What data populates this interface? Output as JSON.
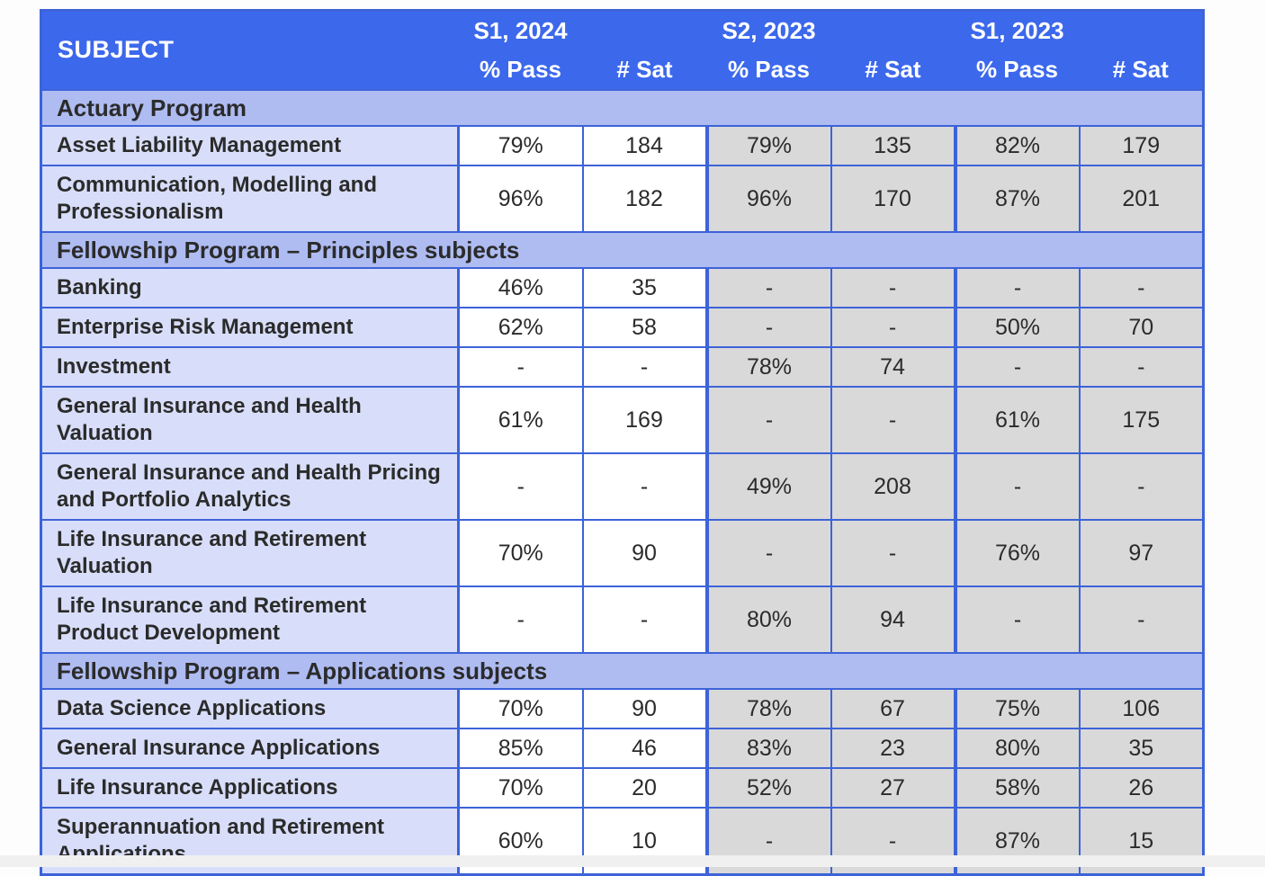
{
  "colors": {
    "header_bg": "#3c68ec",
    "section_bg": "#afbcf2",
    "subject_bg": "#d8def9",
    "current_bg": "#ffffff",
    "past_bg": "#d9d9d9",
    "border": "#3d63d8",
    "header_text": "#ffffff",
    "body_text": "#2b2b2b",
    "page_bg": "#fdfdfd",
    "footer_strip": "#f0f0f0"
  },
  "chart_data": {
    "type": "table",
    "columns": [
      "SUBJECT",
      "S1, 2024 % Pass",
      "S1, 2024 # Sat",
      "S2, 2023 % Pass",
      "S2, 2023 # Sat",
      "S1, 2023 % Pass",
      "S1, 2023 # Sat"
    ],
    "header": {
      "subject_label": "SUBJECT",
      "periods": [
        {
          "label": "S1, 2024",
          "pass_label": "% Pass",
          "sat_label": "# Sat"
        },
        {
          "label": "S2, 2023",
          "pass_label": "% Pass",
          "sat_label": "# Sat"
        },
        {
          "label": "S1, 2023",
          "pass_label": "% Pass",
          "sat_label": "# Sat"
        }
      ]
    },
    "sections": [
      {
        "title": "Actuary Program",
        "rows": [
          {
            "subject": "Asset Liability Management",
            "values": [
              "79%",
              "184",
              "79%",
              "135",
              "82%",
              "179"
            ]
          },
          {
            "subject": "Communication, Modelling and Professionalism",
            "values": [
              "96%",
              "182",
              "96%",
              "170",
              "87%",
              "201"
            ]
          }
        ]
      },
      {
        "title": "Fellowship Program – Principles subjects",
        "rows": [
          {
            "subject": "Banking",
            "values": [
              "46%",
              "35",
              "-",
              "-",
              "-",
              "-"
            ]
          },
          {
            "subject": "Enterprise Risk Management",
            "values": [
              "62%",
              "58",
              "-",
              "-",
              "50%",
              "70"
            ]
          },
          {
            "subject": "Investment",
            "values": [
              "-",
              "-",
              "78%",
              "74",
              "-",
              "-"
            ]
          },
          {
            "subject": "General Insurance and Health Valuation",
            "values": [
              "61%",
              "169",
              "-",
              "-",
              "61%",
              "175"
            ]
          },
          {
            "subject": "General Insurance and Health Pricing and Portfolio Analytics",
            "values": [
              "-",
              "-",
              "49%",
              "208",
              "-",
              "-"
            ]
          },
          {
            "subject": "Life Insurance and Retirement Valuation",
            "values": [
              "70%",
              "90",
              "-",
              "-",
              "76%",
              "97"
            ]
          },
          {
            "subject": "Life Insurance and Retirement Product Development",
            "values": [
              "-",
              "-",
              "80%",
              "94",
              "-",
              "-"
            ]
          }
        ]
      },
      {
        "title": "Fellowship Program – Applications subjects",
        "rows": [
          {
            "subject": "Data Science Applications",
            "values": [
              "70%",
              "90",
              "78%",
              "67",
              "75%",
              "106"
            ]
          },
          {
            "subject": "General Insurance Applications",
            "values": [
              "85%",
              "46",
              "83%",
              "23",
              "80%",
              "35"
            ]
          },
          {
            "subject": "Life Insurance Applications",
            "values": [
              "70%",
              "20",
              "52%",
              "27",
              "58%",
              "26"
            ]
          },
          {
            "subject": "Superannuation and Retirement Applications",
            "values": [
              "60%",
              "10",
              "-",
              "-",
              "87%",
              "15"
            ]
          }
        ]
      }
    ]
  }
}
